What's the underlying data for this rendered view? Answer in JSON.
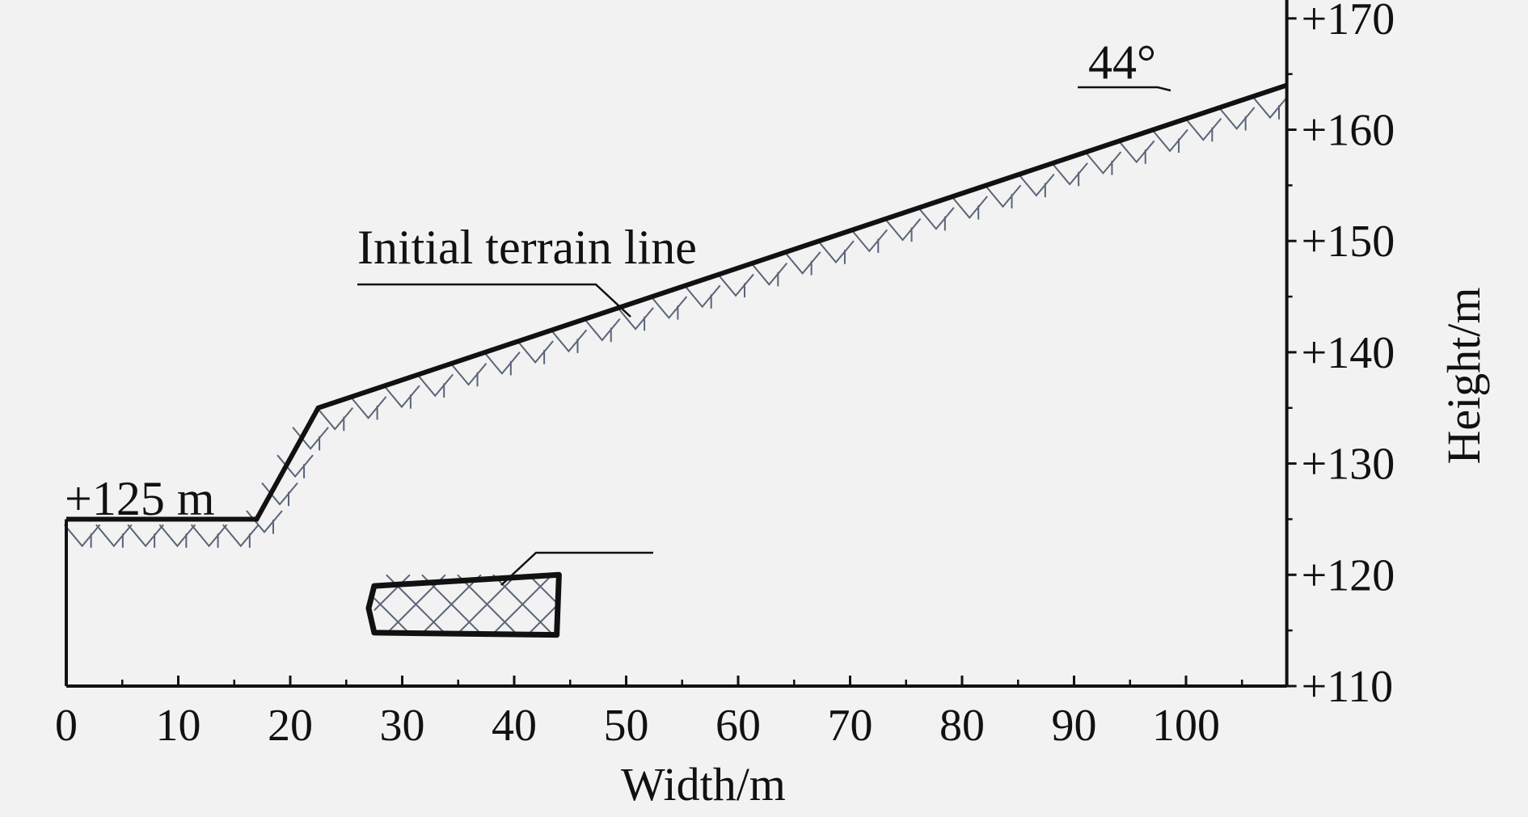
{
  "chart_data": {
    "type": "diagram",
    "xlabel": "Width/m",
    "ylabel": "Height/m",
    "xlim": [
      0,
      109
    ],
    "ylim": [
      110,
      172
    ],
    "x_ticks": [
      "0",
      "10",
      "20",
      "30",
      "40",
      "50",
      "60",
      "70",
      "80",
      "90",
      "100"
    ],
    "y_ticks": [
      "+110",
      "+120",
      "+130",
      "+140",
      "+150",
      "+160",
      "+170"
    ],
    "terrain_profile": [
      {
        "x": 0,
        "y": 125
      },
      {
        "x": 17,
        "y": 125
      },
      {
        "x": 22.5,
        "y": 135
      },
      {
        "x": 109,
        "y": 164
      }
    ],
    "cavity_outline": [
      {
        "x": 27.5,
        "y": 119
      },
      {
        "x": 44,
        "y": 120
      },
      {
        "x": 43.8,
        "y": 114.6
      },
      {
        "x": 27.5,
        "y": 114.8
      },
      {
        "x": 27,
        "y": 117
      }
    ],
    "annotations": {
      "bench_elevation": "+125 m",
      "terrain_line": "Initial terrain line",
      "slope_angle": "44°"
    },
    "colors": {
      "line": "#111111",
      "hatch": "#5a6478",
      "background": "#f2f2f2"
    }
  }
}
